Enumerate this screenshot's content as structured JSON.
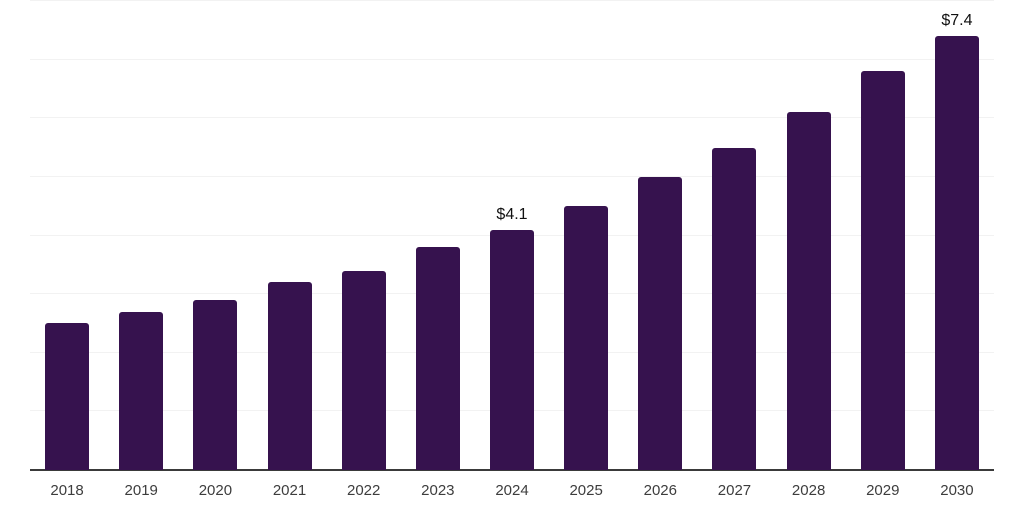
{
  "chart_data": {
    "type": "bar",
    "title": "",
    "xlabel": "",
    "ylabel": "",
    "categories": [
      "2018",
      "2019",
      "2020",
      "2021",
      "2022",
      "2023",
      "2024",
      "2025",
      "2026",
      "2027",
      "2028",
      "2029",
      "2030"
    ],
    "values": [
      2.5,
      2.7,
      2.9,
      3.2,
      3.4,
      3.8,
      4.1,
      4.5,
      5.0,
      5.5,
      6.1,
      6.8,
      7.4
    ],
    "data_labels": [
      "",
      "",
      "",
      "",
      "",
      "",
      "$4.1",
      "",
      "",
      "",
      "",
      "",
      "$7.4"
    ],
    "ylim": [
      0,
      8
    ],
    "grid": true,
    "grid_step": 1,
    "legend": "none",
    "colors": {
      "bar": "#36124e",
      "gridline": "#f2f2f2",
      "axis_line": "#3a3a3a",
      "tick_label": "#3d3d3d",
      "data_label": "#111111",
      "background": "#ffffff"
    }
  }
}
